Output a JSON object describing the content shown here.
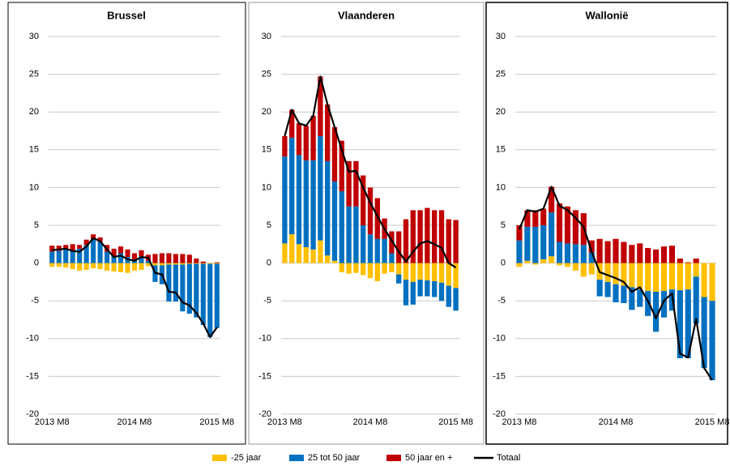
{
  "legend": [
    {
      "name": "-25 jaar",
      "color": "#FFC000"
    },
    {
      "name": "25 tot 50 jaar",
      "color": "#0070C0"
    },
    {
      "name": "50 jaar en +",
      "color": "#C00000"
    },
    {
      "name": "Totaal",
      "color": "#000000"
    }
  ],
  "chart_data": [
    {
      "type": "bar",
      "stacked": true,
      "title": "Brussel",
      "categories": [
        "2013 M8",
        null,
        null,
        null,
        null,
        null,
        null,
        null,
        null,
        null,
        null,
        null,
        "2014 M8",
        null,
        null,
        null,
        null,
        null,
        null,
        null,
        null,
        null,
        null,
        null,
        "2015 M8"
      ],
      "ylim": [
        -20,
        30
      ],
      "yticks": [
        -20,
        -15,
        -10,
        -5,
        0,
        5,
        10,
        15,
        20,
        25,
        30
      ],
      "grid": true,
      "series": [
        {
          "values": [
            -0.5,
            -0.5,
            -0.6,
            -0.8,
            -1.0,
            -0.9,
            -0.7,
            -0.8,
            -1.0,
            -1.1,
            -1.2,
            -1.3,
            -1.0,
            -0.9,
            -0.4,
            -0.3,
            -0.3,
            -0.2,
            -0.2,
            -0.2,
            -0.1,
            -0.1,
            -0.1,
            -0.1,
            -0.1
          ]
        },
        {
          "values": [
            1.5,
            1.6,
            1.8,
            1.6,
            1.9,
            2.4,
            3.2,
            2.8,
            1.5,
            0.9,
            1.3,
            0.8,
            0.5,
            0.9,
            0.3,
            -2.2,
            -2.5,
            -4.9,
            -4.9,
            -6.2,
            -6.6,
            -7.1,
            -8.1,
            -9.7,
            -8.5
          ]
        },
        {
          "values": [
            0.8,
            0.7,
            0.6,
            0.9,
            0.5,
            0.7,
            0.6,
            0.6,
            0.9,
            1.0,
            0.9,
            1.0,
            0.8,
            0.8,
            0.8,
            1.2,
            1.3,
            1.3,
            1.2,
            1.2,
            1.1,
            0.6,
            0.2,
            0.0,
            0.1
          ]
        },
        {
          "type": "line",
          "values": [
            1.7,
            1.8,
            1.9,
            1.6,
            1.5,
            2.2,
            3.3,
            2.9,
            1.8,
            0.8,
            1.0,
            0.5,
            0.3,
            0.8,
            0.7,
            -1.3,
            -1.5,
            -3.8,
            -3.9,
            -5.2,
            -5.6,
            -6.6,
            -8.0,
            -9.8,
            -8.5
          ]
        }
      ]
    },
    {
      "type": "bar",
      "stacked": true,
      "title": "Vlaanderen",
      "categories": [
        "2013 M8",
        null,
        null,
        null,
        null,
        null,
        null,
        null,
        null,
        null,
        null,
        null,
        "2014 M8",
        null,
        null,
        null,
        null,
        null,
        null,
        null,
        null,
        null,
        null,
        null,
        "2015 M8"
      ],
      "ylim": [
        -20,
        30
      ],
      "yticks": [
        -20,
        -15,
        -10,
        -5,
        0,
        5,
        10,
        15,
        20,
        25,
        30
      ],
      "grid": true,
      "series": [
        {
          "values": [
            2.6,
            3.8,
            2.5,
            2.1,
            1.8,
            3.0,
            1.0,
            0.3,
            -1.2,
            -1.4,
            -1.3,
            -1.6,
            -2.0,
            -2.4,
            -1.4,
            -1.2,
            -1.5,
            -2.2,
            -2.5,
            -2.2,
            -2.3,
            -2.4,
            -2.6,
            -3.0,
            -3.3
          ]
        },
        {
          "values": [
            11.5,
            12.8,
            11.8,
            11.5,
            11.8,
            13.8,
            12.5,
            10.5,
            9.5,
            7.5,
            7.5,
            5.0,
            3.8,
            3.2,
            3.2,
            1.3,
            -1.2,
            -3.4,
            -3.0,
            -2.2,
            -2.1,
            -2.1,
            -2.4,
            -2.8,
            -3.0
          ]
        },
        {
          "values": [
            2.7,
            3.7,
            4.2,
            4.6,
            5.9,
            7.9,
            7.5,
            7.2,
            6.7,
            6.0,
            6.0,
            6.6,
            6.2,
            5.4,
            2.7,
            2.9,
            4.2,
            5.8,
            7.0,
            7.0,
            7.3,
            7.0,
            7.0,
            5.8,
            5.7
          ]
        },
        {
          "type": "line",
          "values": [
            16.8,
            20.3,
            18.5,
            18.2,
            19.5,
            24.7,
            21.0,
            18.0,
            15.0,
            12.1,
            12.2,
            10.0,
            8.0,
            6.2,
            4.5,
            3.0,
            1.5,
            0.2,
            1.5,
            2.6,
            2.9,
            2.5,
            2.0,
            0,
            -0.6
          ]
        }
      ]
    },
    {
      "type": "bar",
      "stacked": true,
      "title": "Wallonië",
      "categories": [
        "2013 M8",
        null,
        null,
        null,
        null,
        null,
        null,
        null,
        null,
        null,
        null,
        null,
        "2014 M8",
        null,
        null,
        null,
        null,
        null,
        null,
        null,
        null,
        null,
        null,
        null,
        "2015 M8"
      ],
      "ylim": [
        -20,
        30
      ],
      "yticks": [
        -20,
        -15,
        -10,
        -5,
        0,
        5,
        10,
        15,
        20,
        25,
        30
      ],
      "grid": true,
      "series": [
        {
          "values": [
            -0.5,
            0.3,
            -0.2,
            0.5,
            0.9,
            -0.3,
            -0.5,
            -1.0,
            -1.8,
            -1.5,
            -2.2,
            -2.5,
            -2.8,
            -3.0,
            -3.2,
            -3.5,
            -3.7,
            -3.8,
            -3.7,
            -3.5,
            -3.6,
            -3.5,
            -1.8,
            -4.5,
            -5.0
          ]
        },
        {
          "values": [
            3.0,
            4.5,
            4.8,
            4.5,
            5.8,
            2.8,
            2.6,
            2.5,
            2.4,
            1.4,
            -2.2,
            -2.0,
            -2.4,
            -2.3,
            -3.0,
            -2.3,
            -3.3,
            -5.3,
            -3.5,
            -2.8,
            -9.0,
            -9.1,
            -6.2,
            -9.4,
            -10.5
          ]
        },
        {
          "values": [
            2.0,
            2.2,
            2.2,
            2.2,
            3.4,
            5.1,
            4.9,
            4.5,
            4.2,
            1.6,
            3.2,
            2.9,
            3.2,
            2.8,
            2.4,
            2.6,
            2.0,
            1.8,
            2.2,
            2.3,
            0.6,
            0.1,
            0.6,
            0,
            0
          ]
        },
        {
          "type": "line",
          "values": [
            4.5,
            7.0,
            6.8,
            7.2,
            10.1,
            7.6,
            7.0,
            6.0,
            4.8,
            1.5,
            -1.2,
            -1.6,
            -2.0,
            -2.5,
            -3.8,
            -3.2,
            -5.0,
            -7.3,
            -5.0,
            -4.0,
            -12.0,
            -12.5,
            -7.4,
            -13.9,
            -15.5
          ]
        }
      ]
    }
  ]
}
